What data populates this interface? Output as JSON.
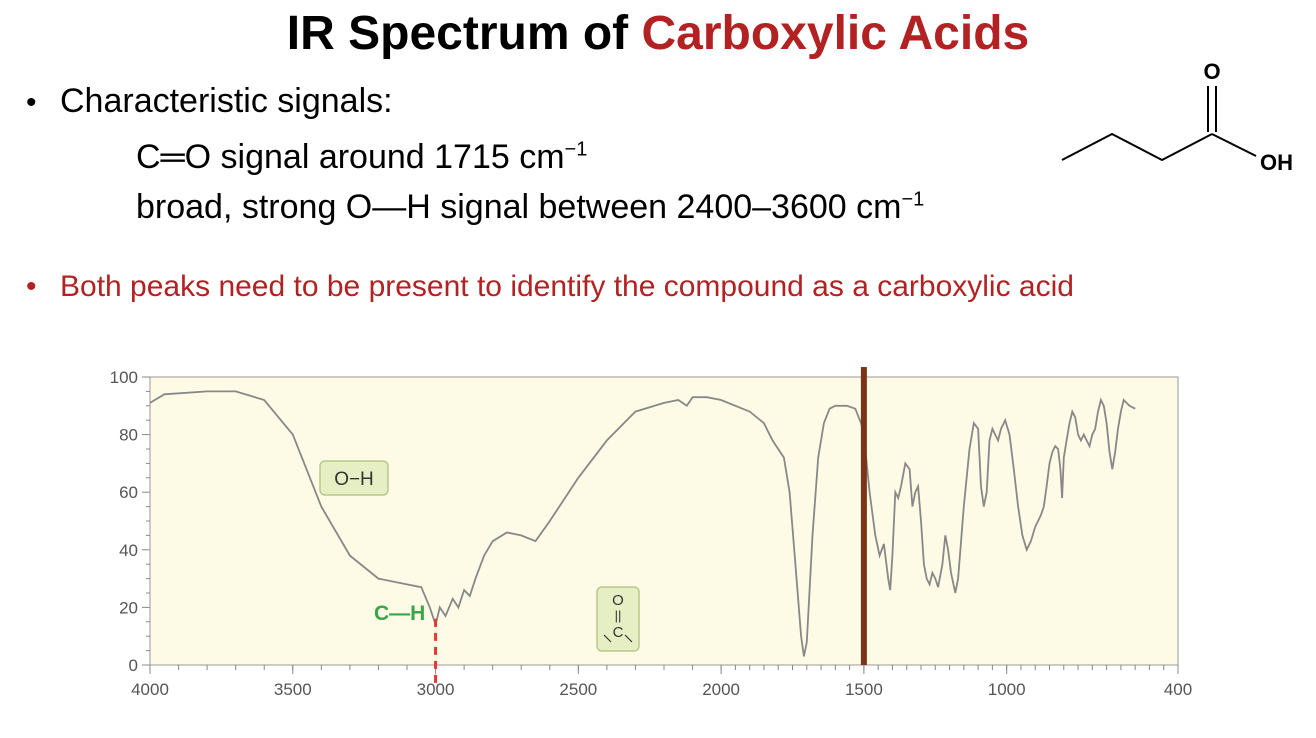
{
  "slide": {
    "title_part1": "IR Spectrum of ",
    "title_part2": "Carboxylic Acids",
    "bullet1": "Characteristic signals:",
    "signal1_text": "C═O signal around 1715 cm",
    "signal1_sup": "−1",
    "signal2_text": "broad, strong O—H signal between 2400–3600 cm",
    "signal2_sup": "−1",
    "bullet2": "Both peaks need to be present to identify the compound as a carboxylic acid",
    "bullet_glyph": "•"
  },
  "molecule": {
    "o_label": "O",
    "oh_label": "OH"
  },
  "colors": {
    "accent": "#b22222",
    "plot_bg": "#fdfae6",
    "spectrum": "#888888",
    "marker_line": "#7a3517",
    "ch_label": "#3aa64a",
    "label_box": "#e6efc4"
  },
  "chart_data": {
    "type": "line",
    "title": "",
    "xlabel": "",
    "ylabel": "",
    "xlim": [
      4000,
      400
    ],
    "ylim": [
      0,
      100
    ],
    "x_ticks": [
      4000,
      3500,
      3000,
      2500,
      2000,
      1500,
      1000,
      400
    ],
    "y_ticks": [
      0,
      20,
      40,
      60,
      80,
      100
    ],
    "annotations": {
      "oh_label": "O−H",
      "ch_label": "C—H",
      "co_top": "O",
      "co_bond": "||",
      "co_bottom": "C"
    },
    "marker_x": 1500,
    "dashed_marker_x": 3000,
    "series": [
      {
        "points": [
          [
            4000,
            91
          ],
          [
            3950,
            94
          ],
          [
            3800,
            95
          ],
          [
            3700,
            95
          ],
          [
            3600,
            92
          ],
          [
            3500,
            80
          ],
          [
            3400,
            55
          ],
          [
            3300,
            38
          ],
          [
            3200,
            30
          ],
          [
            3100,
            28
          ],
          [
            3050,
            27
          ],
          [
            3020,
            20
          ],
          [
            3000,
            14
          ],
          [
            2985,
            20
          ],
          [
            2965,
            17
          ],
          [
            2940,
            23
          ],
          [
            2920,
            20
          ],
          [
            2900,
            26
          ],
          [
            2880,
            24
          ],
          [
            2860,
            30
          ],
          [
            2830,
            38
          ],
          [
            2800,
            43
          ],
          [
            2750,
            46
          ],
          [
            2700,
            45
          ],
          [
            2650,
            43
          ],
          [
            2600,
            50
          ],
          [
            2500,
            65
          ],
          [
            2400,
            78
          ],
          [
            2300,
            88
          ],
          [
            2200,
            91
          ],
          [
            2150,
            92
          ],
          [
            2120,
            90
          ],
          [
            2100,
            93
          ],
          [
            2050,
            93
          ],
          [
            2000,
            92
          ],
          [
            1950,
            90
          ],
          [
            1900,
            88
          ],
          [
            1850,
            84
          ],
          [
            1820,
            78
          ],
          [
            1800,
            75
          ],
          [
            1780,
            72
          ],
          [
            1760,
            60
          ],
          [
            1740,
            35
          ],
          [
            1720,
            10
          ],
          [
            1710,
            3
          ],
          [
            1700,
            8
          ],
          [
            1680,
            45
          ],
          [
            1660,
            72
          ],
          [
            1640,
            84
          ],
          [
            1620,
            89
          ],
          [
            1600,
            90
          ],
          [
            1560,
            90
          ],
          [
            1530,
            89
          ],
          [
            1510,
            84
          ],
          [
            1500,
            80
          ],
          [
            1480,
            60
          ],
          [
            1460,
            45
          ],
          [
            1445,
            38
          ],
          [
            1430,
            42
          ],
          [
            1415,
            30
          ],
          [
            1408,
            26
          ],
          [
            1400,
            38
          ],
          [
            1390,
            60
          ],
          [
            1380,
            58
          ],
          [
            1370,
            62
          ],
          [
            1355,
            70
          ],
          [
            1340,
            68
          ],
          [
            1330,
            55
          ],
          [
            1320,
            60
          ],
          [
            1310,
            62
          ],
          [
            1300,
            50
          ],
          [
            1290,
            35
          ],
          [
            1280,
            30
          ],
          [
            1270,
            28
          ],
          [
            1260,
            32
          ],
          [
            1250,
            30
          ],
          [
            1240,
            27
          ],
          [
            1225,
            35
          ],
          [
            1215,
            45
          ],
          [
            1205,
            40
          ],
          [
            1195,
            32
          ],
          [
            1180,
            25
          ],
          [
            1170,
            30
          ],
          [
            1150,
            55
          ],
          [
            1130,
            75
          ],
          [
            1115,
            84
          ],
          [
            1100,
            82
          ],
          [
            1090,
            62
          ],
          [
            1080,
            55
          ],
          [
            1070,
            60
          ],
          [
            1060,
            78
          ],
          [
            1050,
            82
          ],
          [
            1040,
            80
          ],
          [
            1030,
            78
          ],
          [
            1020,
            82
          ],
          [
            1005,
            85
          ],
          [
            990,
            80
          ],
          [
            975,
            68
          ],
          [
            960,
            55
          ],
          [
            945,
            45
          ],
          [
            930,
            40
          ],
          [
            915,
            43
          ],
          [
            900,
            48
          ],
          [
            880,
            52
          ],
          [
            870,
            55
          ],
          [
            860,
            62
          ],
          [
            850,
            70
          ],
          [
            840,
            74
          ],
          [
            830,
            76
          ],
          [
            820,
            75
          ],
          [
            812,
            68
          ],
          [
            806,
            58
          ],
          [
            800,
            72
          ],
          [
            790,
            78
          ],
          [
            780,
            84
          ],
          [
            770,
            88
          ],
          [
            760,
            86
          ],
          [
            750,
            80
          ],
          [
            740,
            78
          ],
          [
            730,
            80
          ],
          [
            720,
            78
          ],
          [
            710,
            76
          ],
          [
            700,
            80
          ],
          [
            690,
            82
          ],
          [
            680,
            88
          ],
          [
            670,
            92
          ],
          [
            660,
            90
          ],
          [
            650,
            84
          ],
          [
            640,
            74
          ],
          [
            630,
            68
          ],
          [
            620,
            74
          ],
          [
            610,
            82
          ],
          [
            600,
            88
          ],
          [
            590,
            92
          ],
          [
            570,
            90
          ],
          [
            550,
            89
          ]
        ]
      }
    ]
  }
}
